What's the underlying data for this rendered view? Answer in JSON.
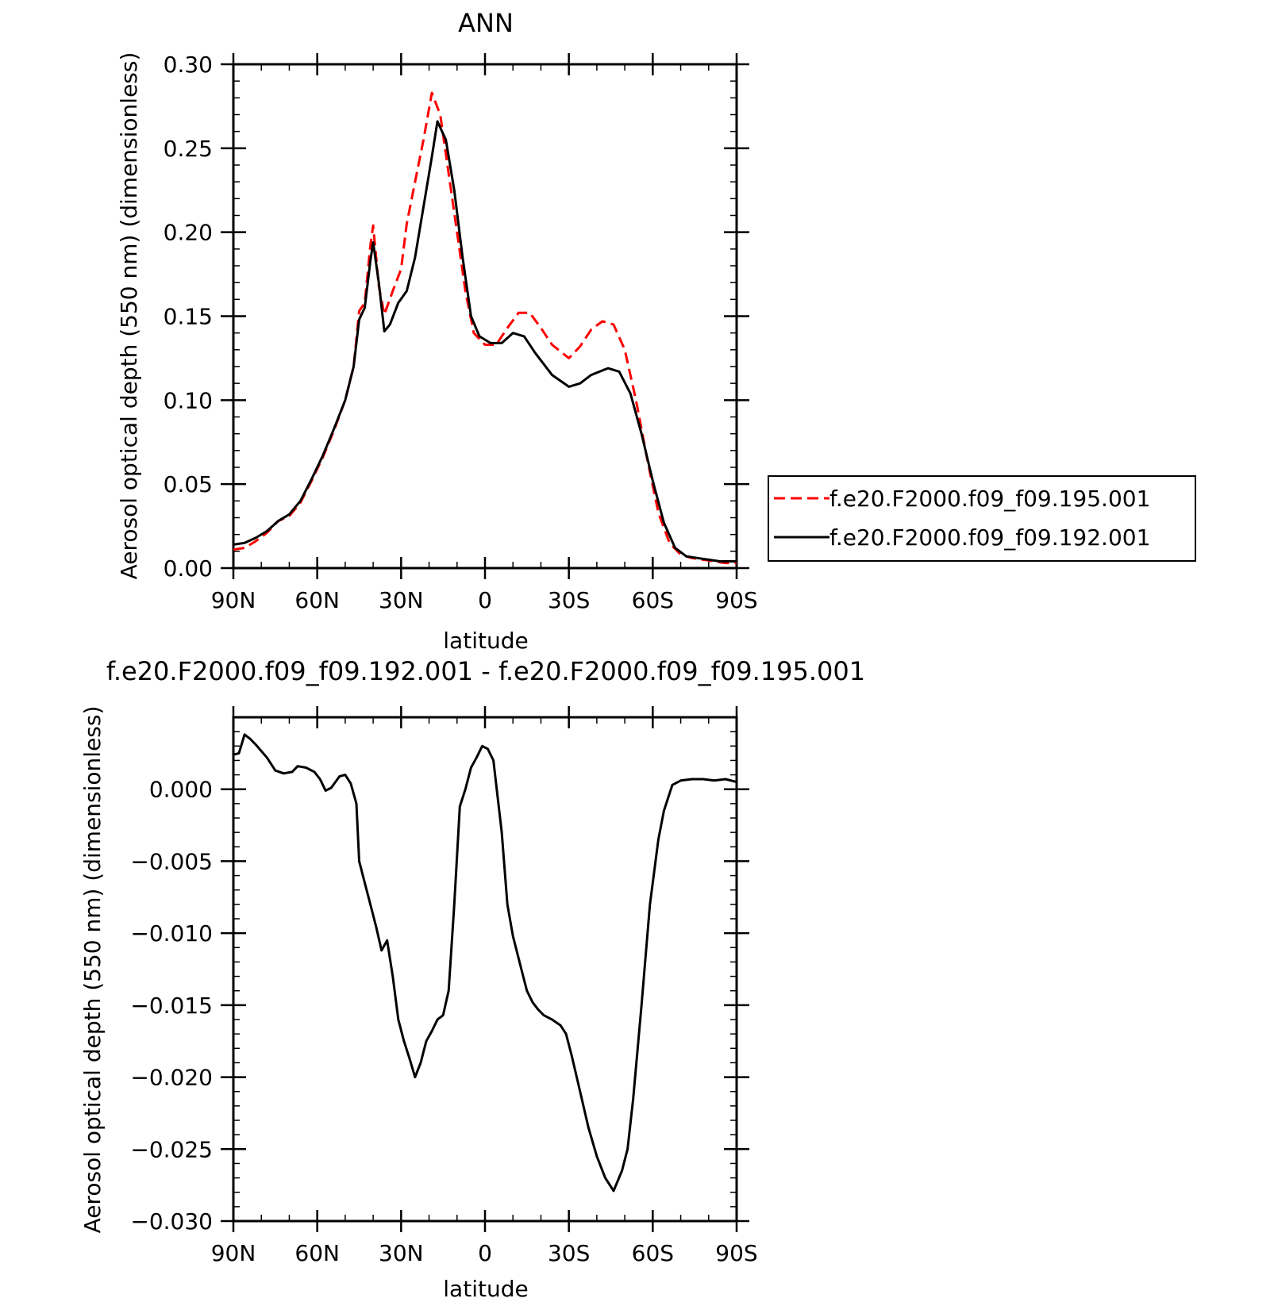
{
  "chart_data": [
    {
      "type": "line",
      "title": "ANN",
      "xlabel": "latitude",
      "ylabel": "Aerosol optical depth (550 nm) (dimensionless)",
      "xlim": [
        90,
        -90
      ],
      "ylim": [
        0.0,
        0.3
      ],
      "xticks": [
        90,
        60,
        30,
        0,
        -30,
        -60,
        -90
      ],
      "xtick_labels": [
        "90N",
        "60N",
        "30N",
        "0",
        "30S",
        "60S",
        "90S"
      ],
      "yticks": [
        0.0,
        0.05,
        0.1,
        0.15,
        0.2,
        0.25,
        0.3
      ],
      "ytick_labels": [
        "0.00",
        "0.05",
        "0.10",
        "0.15",
        "0.20",
        "0.25",
        "0.30"
      ],
      "legend_position": "right",
      "series": [
        {
          "name": "f.e20.F2000.f09_f09.195.001",
          "color": "#ff0000",
          "dash": "dashed",
          "points": [
            [
              90,
              0.011
            ],
            [
              86,
              0.012
            ],
            [
              82,
              0.016
            ],
            [
              78,
              0.021
            ],
            [
              74,
              0.028
            ],
            [
              70,
              0.031
            ],
            [
              66,
              0.039
            ],
            [
              62,
              0.052
            ],
            [
              58,
              0.066
            ],
            [
              54,
              0.082
            ],
            [
              50,
              0.1
            ],
            [
              47,
              0.12
            ],
            [
              45,
              0.153
            ],
            [
              43,
              0.158
            ],
            [
              41,
              0.192
            ],
            [
              40,
              0.204
            ],
            [
              38,
              0.168
            ],
            [
              36,
              0.151
            ],
            [
              33,
              0.165
            ],
            [
              30,
              0.178
            ],
            [
              28,
              0.205
            ],
            [
              25,
              0.23
            ],
            [
              22,
              0.255
            ],
            [
              19,
              0.283
            ],
            [
              16,
              0.27
            ],
            [
              13,
              0.235
            ],
            [
              10,
              0.2
            ],
            [
              7,
              0.165
            ],
            [
              4,
              0.14
            ],
            [
              0,
              0.133
            ],
            [
              -4,
              0.133
            ],
            [
              -8,
              0.143
            ],
            [
              -12,
              0.152
            ],
            [
              -16,
              0.152
            ],
            [
              -20,
              0.143
            ],
            [
              -24,
              0.133
            ],
            [
              -30,
              0.125
            ],
            [
              -34,
              0.132
            ],
            [
              -38,
              0.142
            ],
            [
              -42,
              0.147
            ],
            [
              -46,
              0.145
            ],
            [
              -50,
              0.13
            ],
            [
              -54,
              0.1
            ],
            [
              -58,
              0.065
            ],
            [
              -62,
              0.033
            ],
            [
              -66,
              0.015
            ],
            [
              -70,
              0.008
            ],
            [
              -74,
              0.006
            ],
            [
              -78,
              0.005
            ],
            [
              -82,
              0.004
            ],
            [
              -86,
              0.003
            ],
            [
              -90,
              0.003
            ]
          ]
        },
        {
          "name": "f.e20.F2000.f09_f09.192.001",
          "color": "#000000",
          "dash": "solid",
          "points": [
            [
              90,
              0.014
            ],
            [
              86,
              0.015
            ],
            [
              82,
              0.018
            ],
            [
              78,
              0.022
            ],
            [
              74,
              0.028
            ],
            [
              70,
              0.032
            ],
            [
              66,
              0.04
            ],
            [
              62,
              0.053
            ],
            [
              58,
              0.067
            ],
            [
              54,
              0.083
            ],
            [
              50,
              0.1
            ],
            [
              47,
              0.12
            ],
            [
              45,
              0.148
            ],
            [
              43,
              0.155
            ],
            [
              41,
              0.183
            ],
            [
              40,
              0.194
            ],
            [
              38,
              0.17
            ],
            [
              36,
              0.141
            ],
            [
              34,
              0.145
            ],
            [
              31,
              0.158
            ],
            [
              28,
              0.165
            ],
            [
              25,
              0.185
            ],
            [
              22,
              0.215
            ],
            [
              19,
              0.245
            ],
            [
              17,
              0.266
            ],
            [
              14,
              0.255
            ],
            [
              11,
              0.225
            ],
            [
              8,
              0.185
            ],
            [
              5,
              0.15
            ],
            [
              2,
              0.138
            ],
            [
              -2,
              0.134
            ],
            [
              -6,
              0.134
            ],
            [
              -10,
              0.14
            ],
            [
              -14,
              0.138
            ],
            [
              -18,
              0.128
            ],
            [
              -24,
              0.115
            ],
            [
              -30,
              0.108
            ],
            [
              -34,
              0.11
            ],
            [
              -38,
              0.115
            ],
            [
              -44,
              0.119
            ],
            [
              -48,
              0.117
            ],
            [
              -52,
              0.104
            ],
            [
              -56,
              0.08
            ],
            [
              -60,
              0.052
            ],
            [
              -64,
              0.027
            ],
            [
              -68,
              0.012
            ],
            [
              -72,
              0.007
            ],
            [
              -76,
              0.006
            ],
            [
              -80,
              0.005
            ],
            [
              -84,
              0.004
            ],
            [
              -88,
              0.004
            ],
            [
              -90,
              0.004
            ]
          ]
        }
      ]
    },
    {
      "type": "line",
      "title": "f.e20.F2000.f09_f09.192.001 - f.e20.F2000.f09_f09.195.001",
      "xlabel": "latitude",
      "ylabel": "Aerosol optical depth (550 nm) (dimensionless)",
      "xlim": [
        90,
        -90
      ],
      "ylim": [
        -0.03,
        0.005
      ],
      "xticks": [
        90,
        60,
        30,
        0,
        -30,
        -60,
        -90
      ],
      "xtick_labels": [
        "90N",
        "60N",
        "30N",
        "0",
        "30S",
        "60S",
        "90S"
      ],
      "yticks": [
        0.0,
        -0.005,
        -0.01,
        -0.015,
        -0.02,
        -0.025,
        -0.03
      ],
      "ytick_labels": [
        "0.000",
        "−0.005",
        "−0.010",
        "−0.015",
        "−0.020",
        "−0.025",
        "−0.030"
      ],
      "series": [
        {
          "color": "#000000",
          "dash": "solid",
          "points": [
            [
              90,
              0.0024
            ],
            [
              88,
              0.0025
            ],
            [
              86,
              0.0038
            ],
            [
              84,
              0.0035
            ],
            [
              82,
              0.0031
            ],
            [
              78,
              0.0022
            ],
            [
              75,
              0.0013
            ],
            [
              72,
              0.0011
            ],
            [
              69,
              0.0012
            ],
            [
              67,
              0.0016
            ],
            [
              64,
              0.0015
            ],
            [
              61,
              0.0012
            ],
            [
              59,
              0.0007
            ],
            [
              57,
              -0.0001
            ],
            [
              55,
              0.0001
            ],
            [
              52,
              0.0009
            ],
            [
              50,
              0.001
            ],
            [
              48,
              0.0004
            ],
            [
              46,
              -0.001
            ],
            [
              45,
              -0.005
            ],
            [
              43,
              -0.0065
            ],
            [
              41,
              -0.008
            ],
            [
              39,
              -0.0095
            ],
            [
              37,
              -0.0112
            ],
            [
              35,
              -0.0105
            ],
            [
              33,
              -0.013
            ],
            [
              31,
              -0.016
            ],
            [
              29,
              -0.0175
            ],
            [
              27,
              -0.0187
            ],
            [
              25,
              -0.02
            ],
            [
              23,
              -0.019
            ],
            [
              21,
              -0.0175
            ],
            [
              19,
              -0.0168
            ],
            [
              17,
              -0.016
            ],
            [
              15,
              -0.0157
            ],
            [
              13,
              -0.014
            ],
            [
              11,
              -0.008
            ],
            [
              9,
              -0.0012
            ],
            [
              7,
              0.0
            ],
            [
              5,
              0.0015
            ],
            [
              3,
              0.0022
            ],
            [
              1,
              0.003
            ],
            [
              -1,
              0.0028
            ],
            [
              -3,
              0.002
            ],
            [
              -6,
              -0.003
            ],
            [
              -8,
              -0.008
            ],
            [
              -10,
              -0.0102
            ],
            [
              -13,
              -0.0125
            ],
            [
              -15,
              -0.014
            ],
            [
              -17,
              -0.0148
            ],
            [
              -19,
              -0.0153
            ],
            [
              -21,
              -0.0157
            ],
            [
              -24,
              -0.016
            ],
            [
              -27,
              -0.0164
            ],
            [
              -29,
              -0.017
            ],
            [
              -31,
              -0.0185
            ],
            [
              -34,
              -0.021
            ],
            [
              -37,
              -0.0235
            ],
            [
              -40,
              -0.0255
            ],
            [
              -43,
              -0.027
            ],
            [
              -46,
              -0.0279
            ],
            [
              -49,
              -0.0265
            ],
            [
              -51,
              -0.025
            ],
            [
              -53,
              -0.0215
            ],
            [
              -56,
              -0.015
            ],
            [
              -59,
              -0.008
            ],
            [
              -62,
              -0.0035
            ],
            [
              -64,
              -0.0015
            ],
            [
              -67,
              0.0003
            ],
            [
              -70,
              0.0006
            ],
            [
              -74,
              0.0007
            ],
            [
              -78,
              0.0007
            ],
            [
              -82,
              0.0006
            ],
            [
              -86,
              0.0007
            ],
            [
              -90,
              0.0005
            ]
          ]
        }
      ]
    }
  ]
}
